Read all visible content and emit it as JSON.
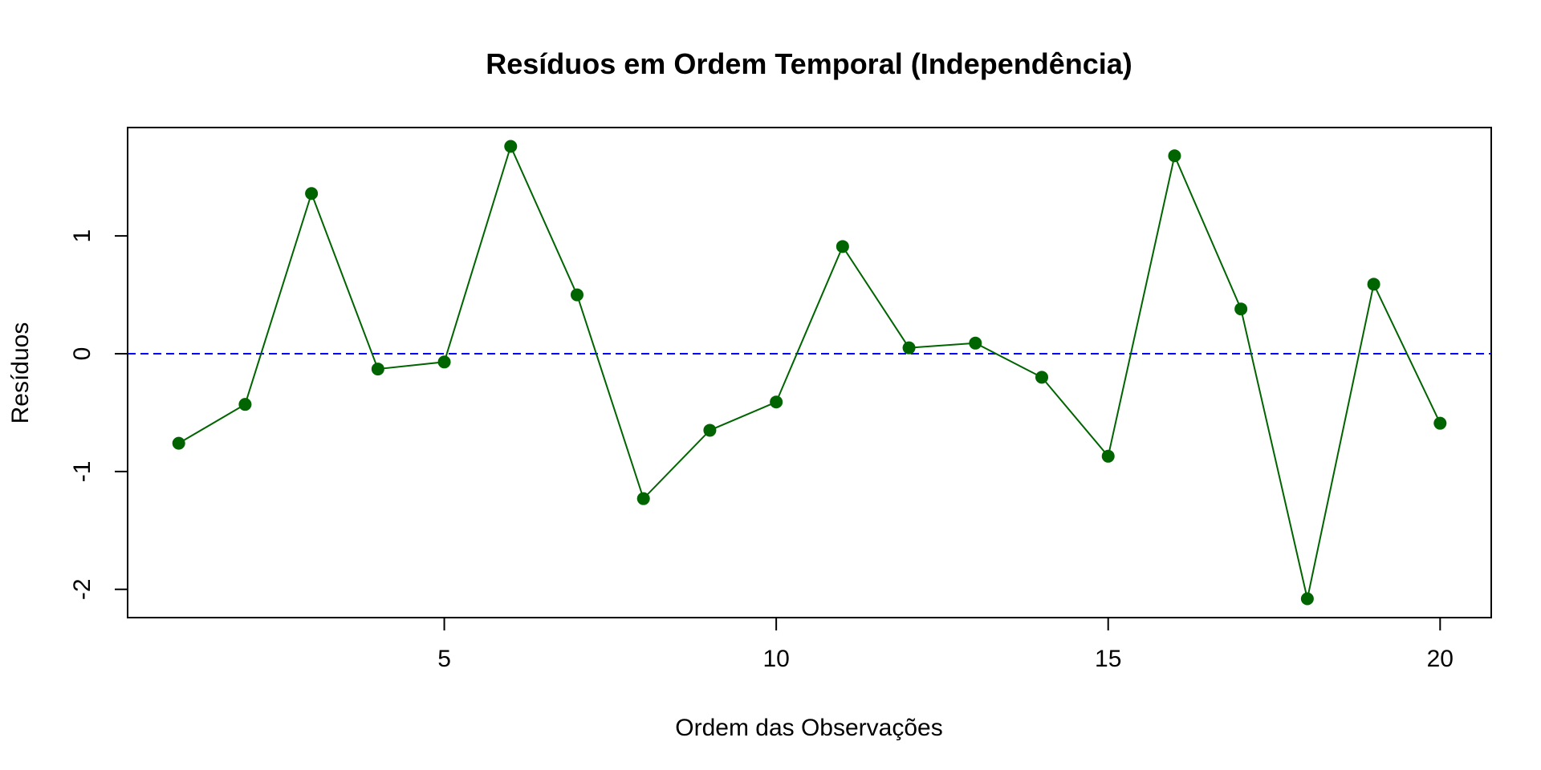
{
  "chart_data": {
    "type": "line",
    "title": "Resíduos em Ordem Temporal (Independência)",
    "xlabel": "Ordem das Observações",
    "ylabel": "Resíduos",
    "xlim": [
      0.23,
      20.77
    ],
    "ylim": [
      -2.24,
      1.92
    ],
    "x_ticks": [
      5,
      10,
      15,
      20
    ],
    "y_ticks": [
      -2,
      -1,
      0,
      1
    ],
    "x": [
      1,
      2,
      3,
      4,
      5,
      6,
      7,
      8,
      9,
      10,
      11,
      12,
      13,
      14,
      15,
      16,
      17,
      18,
      19,
      20
    ],
    "values": [
      -0.76,
      -0.43,
      1.36,
      -0.13,
      -0.07,
      1.76,
      0.5,
      -1.23,
      -0.65,
      -0.41,
      0.91,
      0.05,
      0.09,
      -0.2,
      -0.87,
      1.68,
      0.38,
      -2.08,
      0.59,
      -0.59
    ],
    "reference_line": {
      "y": 0,
      "color": "#0000ff",
      "style": "dashed"
    },
    "series_color": "#006400",
    "grid": false
  }
}
